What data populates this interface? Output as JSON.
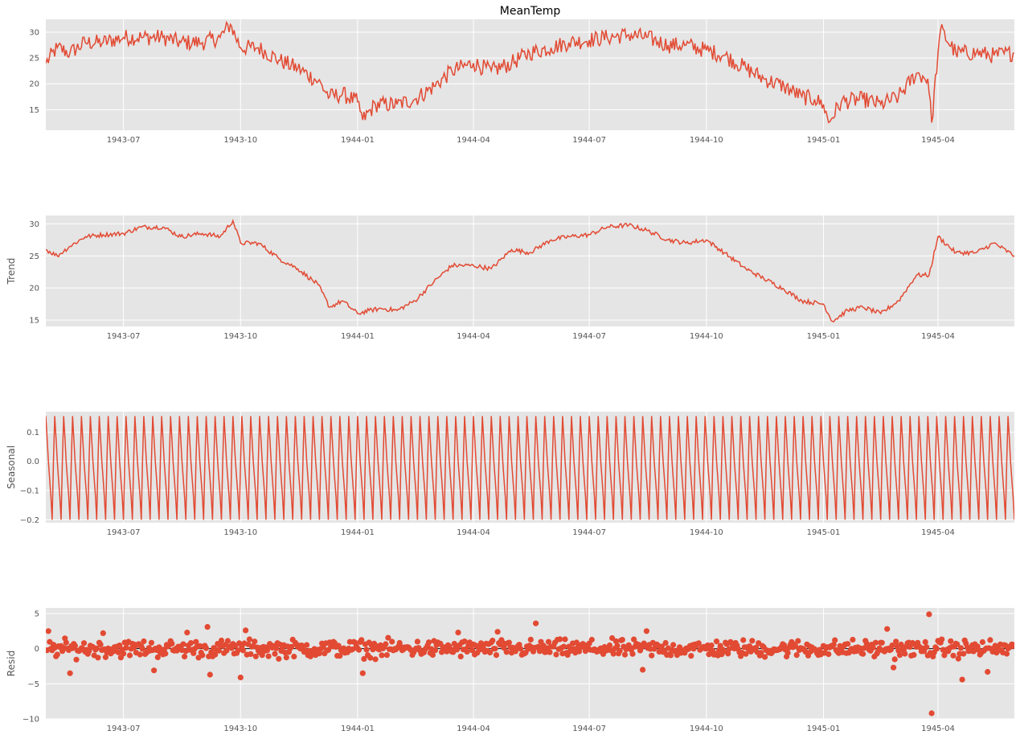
{
  "colors": {
    "background": "#e5e5e5",
    "grid": "#ffffff",
    "series": "#e24a33",
    "zero_line": "#000000",
    "tick_text": "#555555"
  },
  "chart_data": [
    {
      "type": "line",
      "panel": "observed",
      "title": "MeanTemp",
      "ylabel": "",
      "xlim": [
        "1943-05-01",
        "1945-05-31"
      ],
      "ylim": [
        11,
        32.5
      ],
      "yticks": [
        15,
        20,
        25,
        30
      ],
      "grid": true,
      "series": [
        {
          "values_source": "daily",
          "points": [
            [
              "1943-05-01",
              24
            ],
            [
              "1943-05-10",
              27
            ],
            [
              "1943-05-20",
              26
            ],
            [
              "1943-06-01",
              28
            ],
            [
              "1943-06-15",
              28
            ],
            [
              "1943-07-01",
              29
            ],
            [
              "1943-07-15",
              29
            ],
            [
              "1943-08-01",
              29
            ],
            [
              "1943-08-15",
              28
            ],
            [
              "1943-09-01",
              28
            ],
            [
              "1943-09-15",
              29
            ],
            [
              "1943-09-23",
              31.5
            ],
            [
              "1943-10-01",
              27
            ],
            [
              "1943-10-15",
              27
            ],
            [
              "1943-11-01",
              24.5
            ],
            [
              "1943-11-15",
              23
            ],
            [
              "1943-12-01",
              20.5
            ],
            [
              "1943-12-10",
              17.5
            ],
            [
              "1943-12-20",
              18
            ],
            [
              "1944-01-01",
              16.5
            ],
            [
              "1944-01-05",
              13
            ],
            [
              "1944-01-15",
              16
            ],
            [
              "1944-02-01",
              16
            ],
            [
              "1944-02-15",
              17
            ],
            [
              "1944-03-01",
              19.5
            ],
            [
              "1944-03-15",
              22.5
            ],
            [
              "1944-04-01",
              24
            ],
            [
              "1944-04-15",
              22.5
            ],
            [
              "1944-05-01",
              24
            ],
            [
              "1944-05-15",
              26
            ],
            [
              "1944-06-01",
              27
            ],
            [
              "1944-06-15",
              28
            ],
            [
              "1944-07-01",
              28.5
            ],
            [
              "1944-07-15",
              29
            ],
            [
              "1944-08-01",
              29.5
            ],
            [
              "1944-08-15",
              29
            ],
            [
              "1944-09-01",
              27.5
            ],
            [
              "1944-09-15",
              27.5
            ],
            [
              "1944-10-01",
              26.5
            ],
            [
              "1944-10-15",
              25.5
            ],
            [
              "1944-11-01",
              23
            ],
            [
              "1944-11-15",
              21
            ],
            [
              "1944-12-01",
              19.5
            ],
            [
              "1944-12-15",
              17.5
            ],
            [
              "1944-12-25",
              17
            ],
            [
              "1945-01-01",
              16
            ],
            [
              "1945-01-05",
              12.5
            ],
            [
              "1945-01-15",
              16.5
            ],
            [
              "1945-02-01",
              17
            ],
            [
              "1945-02-15",
              16
            ],
            [
              "1945-03-01",
              17.5
            ],
            [
              "1945-03-15",
              22
            ],
            [
              "1945-03-24",
              21
            ],
            [
              "1945-03-27",
              12.5
            ],
            [
              "1945-04-01",
              26
            ],
            [
              "1945-04-03",
              30.5
            ],
            [
              "1945-04-15",
              26
            ],
            [
              "1945-05-01",
              26
            ],
            [
              "1945-05-15",
              25.5
            ],
            [
              "1945-05-31",
              26
            ]
          ]
        }
      ]
    },
    {
      "type": "line",
      "panel": "trend",
      "title": "",
      "ylabel": "Trend",
      "xlim": [
        "1943-05-01",
        "1945-05-31"
      ],
      "ylim": [
        14,
        31.3
      ],
      "yticks": [
        15,
        20,
        25,
        30
      ],
      "grid": true,
      "series": [
        {
          "points": [
            [
              "1943-05-01",
              26
            ],
            [
              "1943-05-10",
              25
            ],
            [
              "1943-05-20",
              26.5
            ],
            [
              "1943-06-01",
              28
            ],
            [
              "1943-06-15",
              28.3
            ],
            [
              "1943-07-01",
              28.5
            ],
            [
              "1943-07-15",
              29.5
            ],
            [
              "1943-08-01",
              29.5
            ],
            [
              "1943-08-15",
              28
            ],
            [
              "1943-09-01",
              28.5
            ],
            [
              "1943-09-15",
              28
            ],
            [
              "1943-09-25",
              30.5
            ],
            [
              "1943-10-01",
              27
            ],
            [
              "1943-10-15",
              27
            ],
            [
              "1943-11-01",
              24.5
            ],
            [
              "1943-11-15",
              23
            ],
            [
              "1943-12-01",
              20.5
            ],
            [
              "1943-12-10",
              17
            ],
            [
              "1943-12-20",
              18
            ],
            [
              "1944-01-01",
              16
            ],
            [
              "1944-01-10",
              16.5
            ],
            [
              "1944-01-20",
              16.8
            ],
            [
              "1944-02-01",
              16.5
            ],
            [
              "1944-02-15",
              18
            ],
            [
              "1944-03-01",
              21
            ],
            [
              "1944-03-15",
              23.5
            ],
            [
              "1944-04-01",
              23.5
            ],
            [
              "1944-04-15",
              23
            ],
            [
              "1944-05-01",
              26
            ],
            [
              "1944-05-15",
              25.5
            ],
            [
              "1944-06-01",
              27.5
            ],
            [
              "1944-06-15",
              28
            ],
            [
              "1944-07-01",
              28.3
            ],
            [
              "1944-07-15",
              29.5
            ],
            [
              "1944-08-01",
              29.8
            ],
            [
              "1944-08-15",
              29
            ],
            [
              "1944-09-01",
              27.5
            ],
            [
              "1944-09-15",
              27
            ],
            [
              "1944-10-01",
              27.5
            ],
            [
              "1944-10-15",
              25.5
            ],
            [
              "1944-11-01",
              23
            ],
            [
              "1944-11-15",
              21.5
            ],
            [
              "1944-12-01",
              19.8
            ],
            [
              "1944-12-15",
              18
            ],
            [
              "1945-01-01",
              17.5
            ],
            [
              "1945-01-08",
              14.8
            ],
            [
              "1945-01-20",
              16.5
            ],
            [
              "1945-02-01",
              17
            ],
            [
              "1945-02-15",
              16
            ],
            [
              "1945-03-01",
              18
            ],
            [
              "1945-03-15",
              22
            ],
            [
              "1945-03-25",
              22
            ],
            [
              "1945-04-01",
              28
            ],
            [
              "1945-04-15",
              25.5
            ],
            [
              "1945-05-01",
              25.5
            ],
            [
              "1945-05-15",
              27
            ],
            [
              "1945-05-31",
              25
            ]
          ]
        }
      ]
    },
    {
      "type": "line",
      "panel": "seasonal",
      "title": "",
      "ylabel": "Seasonal",
      "xlim": [
        "1943-05-01",
        "1945-05-31"
      ],
      "ylim": [
        -0.21,
        0.17
      ],
      "yticks": [
        -0.2,
        -0.1,
        0.0,
        0.1
      ],
      "ytick_labels": [
        "−0.2",
        "−0.1",
        "0.0",
        "0.1"
      ],
      "grid": true,
      "series": [
        {
          "period_days": 7,
          "pattern": [
            0.155,
            0.08,
            0.0,
            -0.06,
            -0.12,
            -0.2,
            0.0
          ]
        }
      ]
    },
    {
      "type": "scatter",
      "panel": "resid",
      "title": "",
      "ylabel": "Resid",
      "xlim": [
        "1943-05-01",
        "1945-05-31"
      ],
      "ylim": [
        -10,
        5.8
      ],
      "yticks": [
        -10,
        -5,
        0,
        5
      ],
      "ytick_labels": [
        "−10",
        "−5",
        "0",
        "5"
      ],
      "grid": true,
      "zero_line": true,
      "series": [
        {
          "typical_spread": 1.2,
          "outliers": [
            [
              "1943-05-03",
              2.5
            ],
            [
              "1943-05-20",
              -3.5
            ],
            [
              "1943-06-15",
              2.2
            ],
            [
              "1943-07-25",
              -3.1
            ],
            [
              "1943-08-20",
              2.3
            ],
            [
              "1943-09-05",
              3.1
            ],
            [
              "1943-09-07",
              -3.7
            ],
            [
              "1943-10-01",
              -4.1
            ],
            [
              "1943-10-05",
              2.6
            ],
            [
              "1944-01-05",
              -3.5
            ],
            [
              "1944-03-20",
              2.3
            ],
            [
              "1944-04-20",
              2.4
            ],
            [
              "1944-05-20",
              3.6
            ],
            [
              "1944-08-15",
              2.5
            ],
            [
              "1944-08-12",
              -3.0
            ],
            [
              "1945-02-20",
              2.8
            ],
            [
              "1945-02-25",
              -2.7
            ],
            [
              "1945-03-25",
              4.9
            ],
            [
              "1945-03-27",
              -9.2
            ],
            [
              "1945-04-20",
              -4.4
            ],
            [
              "1945-05-10",
              -3.3
            ]
          ]
        }
      ]
    }
  ],
  "x_ticks": [
    "1943-07",
    "1943-10",
    "1944-01",
    "1944-04",
    "1944-07",
    "1944-10",
    "1945-01",
    "1945-04"
  ]
}
